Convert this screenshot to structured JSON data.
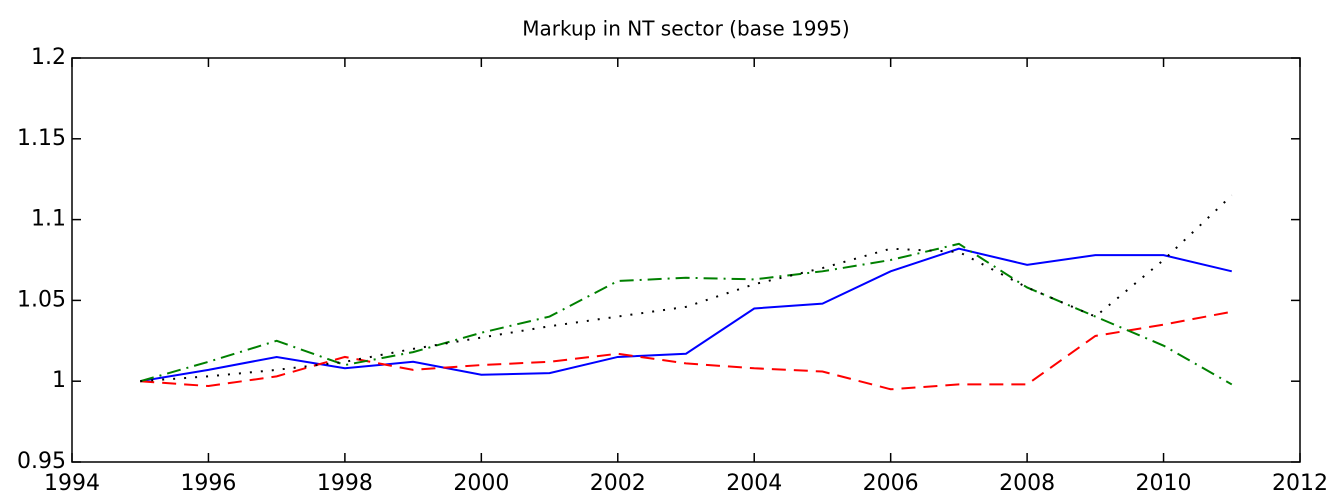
{
  "chart_data": {
    "type": "line",
    "title": "Markup in NT sector (base 1995)",
    "x": [
      1995,
      1996,
      1997,
      1998,
      1999,
      2000,
      2001,
      2002,
      2003,
      2004,
      2005,
      2006,
      2007,
      2008,
      2009,
      2010,
      2011
    ],
    "series": [
      {
        "color": "#0000ff",
        "style": "solid",
        "values": [
          1.0,
          1.007,
          1.015,
          1.008,
          1.012,
          1.004,
          1.005,
          1.015,
          1.017,
          1.045,
          1.048,
          1.068,
          1.082,
          1.072,
          1.078,
          1.078,
          1.068
        ]
      },
      {
        "color": "#ff0000",
        "style": "dashed",
        "values": [
          1.0,
          0.997,
          1.003,
          1.015,
          1.007,
          1.01,
          1.012,
          1.017,
          1.011,
          1.008,
          1.006,
          0.995,
          0.998,
          0.998,
          1.028,
          1.035,
          1.043
        ]
      },
      {
        "color": "#008000",
        "style": "dashdot",
        "values": [
          1.0,
          1.012,
          1.025,
          1.01,
          1.018,
          1.03,
          1.04,
          1.062,
          1.064,
          1.063,
          1.068,
          1.075,
          1.085,
          1.058,
          1.04,
          1.022,
          0.998
        ]
      },
      {
        "color": "#000000",
        "style": "dotted",
        "values": [
          1.0,
          1.003,
          1.007,
          1.012,
          1.02,
          1.027,
          1.034,
          1.04,
          1.046,
          1.06,
          1.07,
          1.082,
          1.08,
          1.058,
          1.04,
          1.075,
          1.115
        ]
      }
    ],
    "xlim": [
      1994,
      2012
    ],
    "xticks": [
      1994,
      1996,
      1998,
      2000,
      2002,
      2004,
      2006,
      2008,
      2010,
      2012
    ],
    "ylim": [
      0.95,
      1.2
    ],
    "yticks": [
      0.95,
      1,
      1.05,
      1.1,
      1.15,
      1.2
    ],
    "grid": false
  }
}
